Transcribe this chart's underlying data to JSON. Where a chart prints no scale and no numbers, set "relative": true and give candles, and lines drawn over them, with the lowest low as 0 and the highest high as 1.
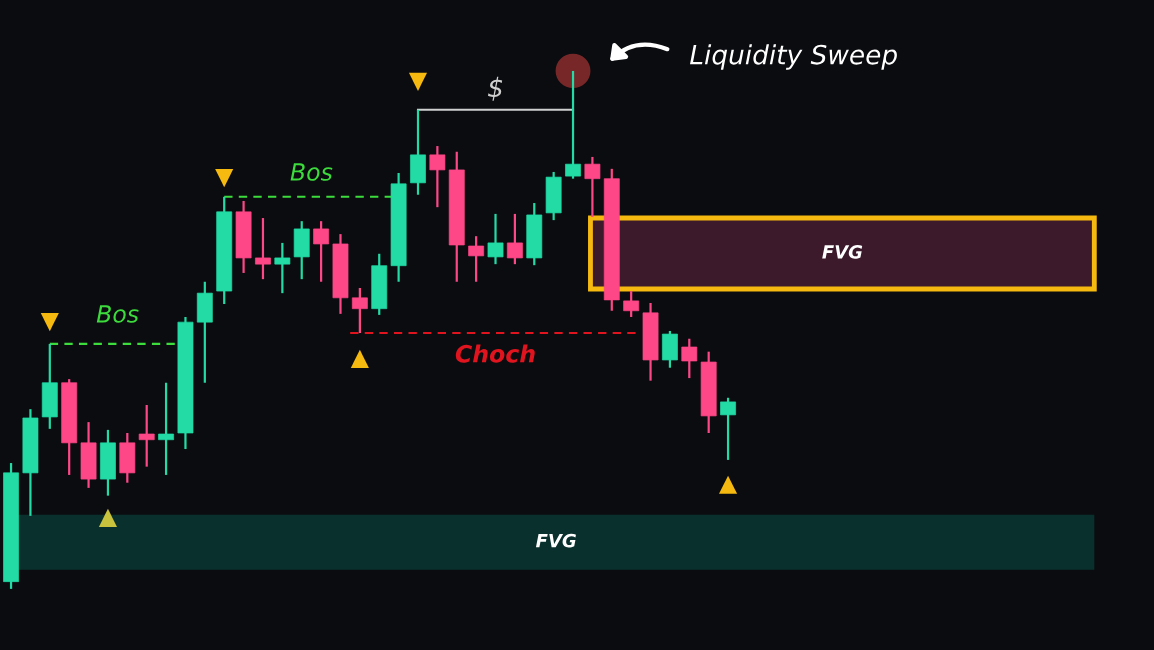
{
  "chart_data": {
    "type": "candlestick",
    "relative": true,
    "categories": [
      null,
      null,
      null,
      null,
      null,
      null,
      null,
      null,
      null,
      null,
      null,
      null,
      null,
      null,
      null,
      null,
      null,
      null,
      null,
      null,
      null,
      null,
      null,
      null,
      null,
      null,
      null,
      null,
      null,
      null,
      null,
      null,
      null,
      null,
      null,
      null,
      null,
      null
    ],
    "ohlc": [
      [
        0.014,
        0.243,
        0,
        0.224
      ],
      [
        0.224,
        0.347,
        0.141,
        0.33
      ],
      [
        0.332,
        0.473,
        0.309,
        0.398
      ],
      [
        0.398,
        0.405,
        0.22,
        0.282
      ],
      [
        0.282,
        0.322,
        0.195,
        0.212
      ],
      [
        0.212,
        0.307,
        0.18,
        0.282
      ],
      [
        0.282,
        0.301,
        0.205,
        0.224
      ],
      [
        0.299,
        0.355,
        0.236,
        0.288
      ],
      [
        0.288,
        0.398,
        0.22,
        0.299
      ],
      [
        0.301,
        0.525,
        0.27,
        0.515
      ],
      [
        0.515,
        0.593,
        0.398,
        0.571
      ],
      [
        0.575,
        0.757,
        0.55,
        0.728
      ],
      [
        0.728,
        0.749,
        0.61,
        0.639
      ],
      [
        0.639,
        0.716,
        0.598,
        0.627
      ],
      [
        0.627,
        0.668,
        0.571,
        0.639
      ],
      [
        0.641,
        0.71,
        0.598,
        0.695
      ],
      [
        0.695,
        0.71,
        0.593,
        0.666
      ],
      [
        0.666,
        0.685,
        0.531,
        0.562
      ],
      [
        0.562,
        0.581,
        0.494,
        0.541
      ],
      [
        0.541,
        0.647,
        0.529,
        0.624
      ],
      [
        0.624,
        0.803,
        0.593,
        0.782
      ],
      [
        0.784,
        0.925,
        0.761,
        0.838
      ],
      [
        0.838,
        0.855,
        0.737,
        0.809
      ],
      [
        0.809,
        0.844,
        0.593,
        0.664
      ],
      [
        0.662,
        0.681,
        0.593,
        0.643
      ],
      [
        0.641,
        0.724,
        0.627,
        0.668
      ],
      [
        0.668,
        0.724,
        0.627,
        0.639
      ],
      [
        0.639,
        0.745,
        0.625,
        0.722
      ],
      [
        0.726,
        0.805,
        0.712,
        0.795
      ],
      [
        0.797,
        1.0,
        0.792,
        0.82
      ],
      [
        0.82,
        0.834,
        0.718,
        0.792
      ],
      [
        0.792,
        0.811,
        0.537,
        0.558
      ],
      [
        0.556,
        0.575,
        0.525,
        0.537
      ],
      [
        0.533,
        0.552,
        0.402,
        0.442
      ],
      [
        0.442,
        0.498,
        0.427,
        0.492
      ],
      [
        0.467,
        0.483,
        0.407,
        0.44
      ],
      [
        0.438,
        0.458,
        0.301,
        0.334
      ],
      [
        0.336,
        0.369,
        0.249,
        0.361
      ]
    ],
    "colors": [
      "#22dba5",
      "#22dba5",
      "#22dba5",
      "#fd4787",
      "#fd4787",
      "#22dba5",
      "#fd4787",
      "#fd4787",
      "#22dba5",
      "#22dba5",
      "#22dba5",
      "#22dba5",
      "#fd4787",
      "#fd4787",
      "#22dba5",
      "#22dba5",
      "#fd4787",
      "#fd4787",
      "#fd4787",
      "#22dba5",
      "#22dba5",
      "#22dba5",
      "#fd4787",
      "#fd4787",
      "#fd4787",
      "#22dba5",
      "#fd4787",
      "#22dba5",
      "#22dba5",
      "#22dba5",
      "#fd4787",
      "#fd4787",
      "#fd4787",
      "#fd4787",
      "#22dba5",
      "#fd4787",
      "#fd4787",
      "#22dba5"
    ],
    "series": [
      {
        "type": "scatter",
        "marker": "triangle",
        "color": "#f5b90f",
        "values": [
          null,
          null,
          0.515,
          null,
          null,
          null,
          null,
          null,
          null,
          null,
          null,
          0.793,
          null,
          null,
          null,
          null,
          null,
          null,
          null,
          null,
          null,
          0.979,
          null,
          null,
          null,
          null,
          null,
          null,
          null,
          null,
          null,
          null,
          null,
          null,
          null,
          null,
          null,
          null
        ]
      },
      {
        "type": "scatter",
        "marker": "triangle",
        "colors": [
          null,
          null,
          null,
          null,
          null,
          "#c9c23c",
          null,
          null,
          null,
          null,
          null,
          null,
          null,
          null,
          null,
          null,
          null,
          null,
          "#f5b90f",
          null,
          null,
          null,
          null,
          null,
          null,
          null,
          null,
          null,
          null,
          null,
          null,
          null,
          null,
          null,
          null,
          null,
          null,
          "#f5b90f"
        ],
        "values": [
          null,
          null,
          null,
          null,
          null,
          0.137,
          null,
          null,
          null,
          null,
          null,
          null,
          null,
          null,
          null,
          null,
          null,
          null,
          0.444,
          null,
          null,
          null,
          null,
          null,
          null,
          null,
          null,
          null,
          null,
          null,
          null,
          null,
          null,
          null,
          null,
          null,
          null,
          0.201
        ]
      }
    ],
    "ref_lines": [
      {
        "axis": "y",
        "value": 0.473,
        "label": "Bos",
        "color": "#3ddc3d",
        "line_style": "dashed"
      },
      {
        "axis": "y",
        "value": 0.757,
        "label": "Bos",
        "color": "#3ddc3d",
        "line_style": "dashed"
      },
      {
        "axis": "y",
        "value": 0.494,
        "label": "Choch",
        "color": "#e0141e",
        "line_style": "dashed"
      },
      {
        "axis": "y",
        "value": 0.925,
        "label": "$",
        "color": "#d0d0d0",
        "line_style": "solid"
      }
    ],
    "bands": [
      {
        "axis": "y",
        "from": 0.579,
        "to": 0.716,
        "label": "FVG",
        "color": "#3d1a2b"
      },
      {
        "axis": "y",
        "from": 0.037,
        "to": 0.143,
        "label": "FVG",
        "color": "#0a302d"
      }
    ],
    "annotations": [
      "Liquidity Sweep"
    ]
  }
}
